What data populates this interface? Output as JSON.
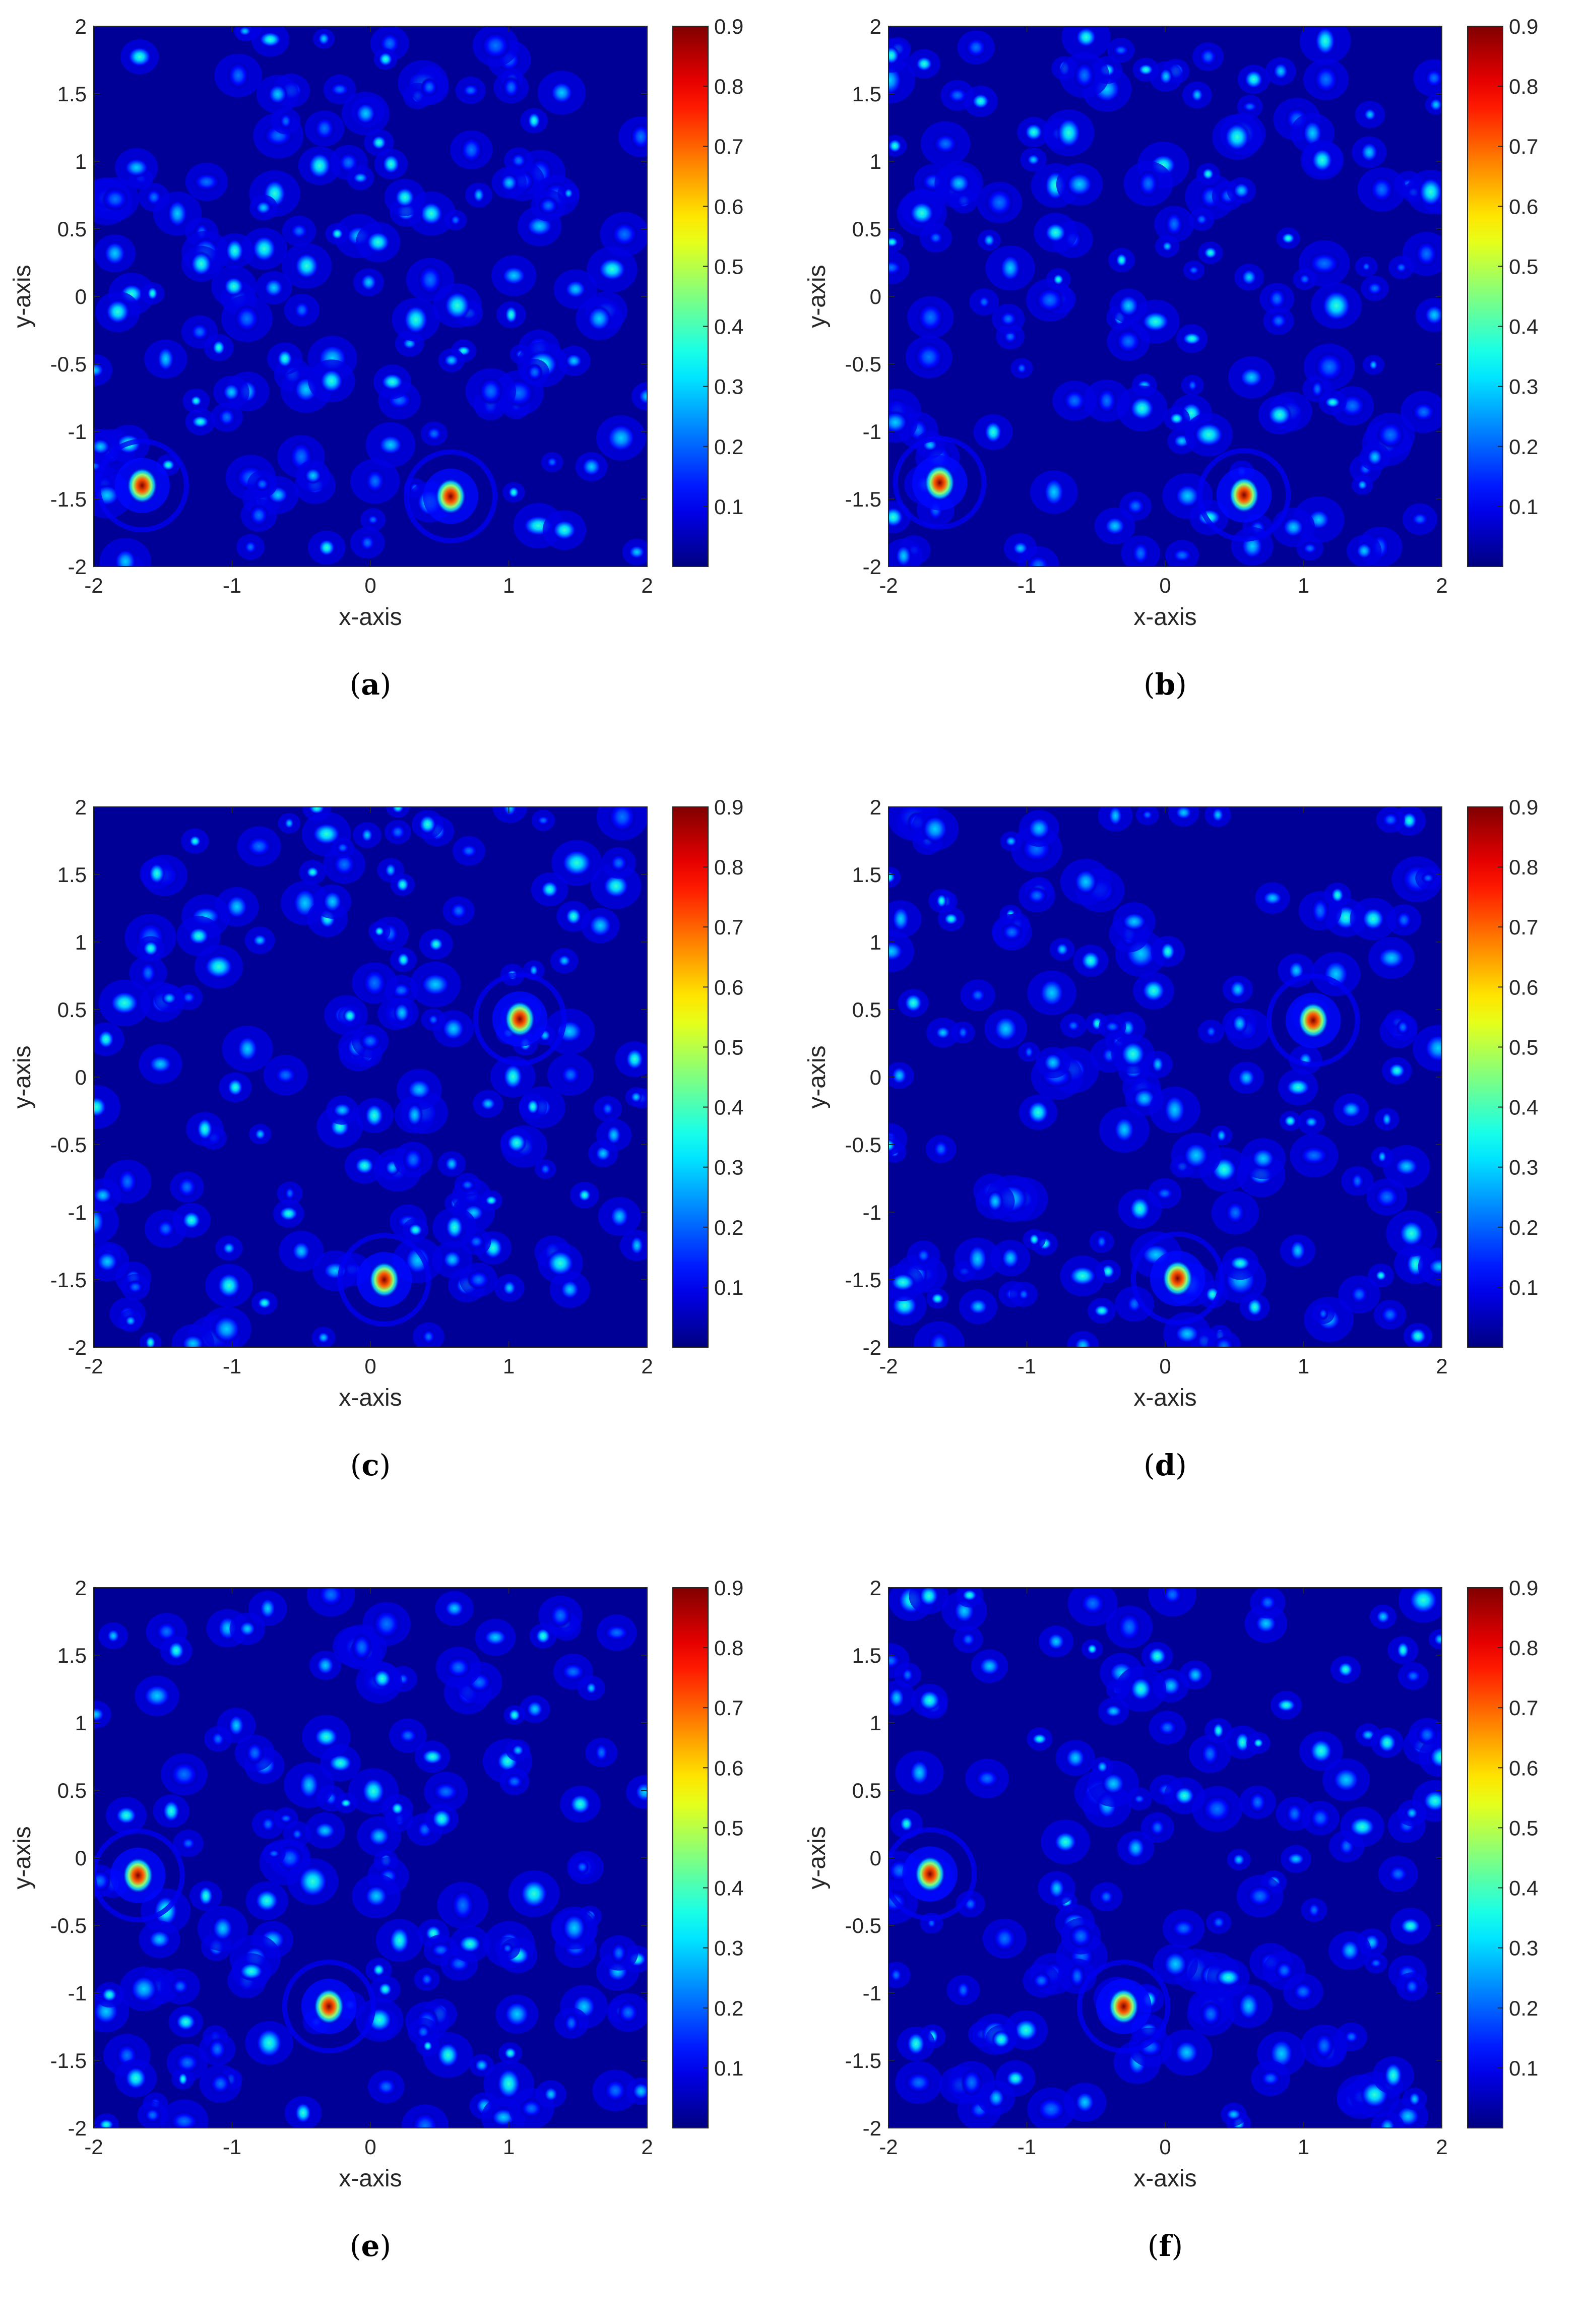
{
  "chart_data": [
    {
      "type": "heatmap",
      "caption": "(a)",
      "caption_letter": "a",
      "xlabel": "x-axis",
      "ylabel": "y-axis",
      "xlim": [
        -2,
        2
      ],
      "ylim": [
        -2,
        2
      ],
      "xticks": [
        "-2",
        "-1",
        "0",
        "1",
        "2"
      ],
      "yticks": [
        "2",
        "1.5",
        "1",
        "0.5",
        "0",
        "-0.5",
        "-1",
        "-1.5",
        "-2"
      ],
      "colorbar": {
        "range": [
          0,
          0.9
        ],
        "ticks": [
          "0.9",
          "0.8",
          "0.7",
          "0.6",
          "0.5",
          "0.4",
          "0.3",
          "0.2",
          "0.1"
        ],
        "colormap": "jet"
      },
      "peaks": [
        {
          "x": -1.65,
          "y": -1.4,
          "value": 0.9
        },
        {
          "x": 0.58,
          "y": -1.48,
          "value": 0.9
        }
      ],
      "speckle_seed": 11
    },
    {
      "type": "heatmap",
      "caption": "(b)",
      "caption_letter": "b",
      "xlabel": "x-axis",
      "ylabel": "y-axis",
      "xlim": [
        -2,
        2
      ],
      "ylim": [
        -2,
        2
      ],
      "xticks": [
        "-2",
        "-1",
        "0",
        "1",
        "2"
      ],
      "yticks": [
        "2",
        "1.5",
        "1",
        "0.5",
        "0",
        "-0.5",
        "-1",
        "-1.5",
        "-2"
      ],
      "colorbar": {
        "range": [
          0,
          0.9
        ],
        "ticks": [
          "0.9",
          "0.8",
          "0.7",
          "0.6",
          "0.5",
          "0.4",
          "0.3",
          "0.2",
          "0.1"
        ],
        "colormap": "jet"
      },
      "peaks": [
        {
          "x": -1.63,
          "y": -1.38,
          "value": 0.9
        },
        {
          "x": 0.57,
          "y": -1.47,
          "value": 0.88
        }
      ],
      "speckle_seed": 12
    },
    {
      "type": "heatmap",
      "caption": "(c)",
      "caption_letter": "c",
      "xlabel": "x-axis",
      "ylabel": "y-axis",
      "xlim": [
        -2,
        2
      ],
      "ylim": [
        -2,
        2
      ],
      "xticks": [
        "-2",
        "-1",
        "0",
        "1",
        "2"
      ],
      "yticks": [
        "2",
        "1.5",
        "1",
        "0.5",
        "0",
        "-0.5",
        "-1",
        "-1.5",
        "-2"
      ],
      "colorbar": {
        "range": [
          0,
          0.9
        ],
        "ticks": [
          "0.9",
          "0.8",
          "0.7",
          "0.6",
          "0.5",
          "0.4",
          "0.3",
          "0.2",
          "0.1"
        ],
        "colormap": "jet"
      },
      "peaks": [
        {
          "x": 1.08,
          "y": 0.43,
          "value": 0.9
        },
        {
          "x": 0.1,
          "y": -1.5,
          "value": 0.9
        }
      ],
      "speckle_seed": 21
    },
    {
      "type": "heatmap",
      "caption": "(d)",
      "caption_letter": "d",
      "xlabel": "x-axis",
      "ylabel": "y-axis",
      "xlim": [
        -2,
        2
      ],
      "ylim": [
        -2,
        2
      ],
      "xticks": [
        "-2",
        "-1",
        "0",
        "1",
        "2"
      ],
      "yticks": [
        "2",
        "1.5",
        "1",
        "0.5",
        "0",
        "-0.5",
        "-1",
        "-1.5",
        "-2"
      ],
      "colorbar": {
        "range": [
          0,
          0.9
        ],
        "ticks": [
          "0.9",
          "0.8",
          "0.7",
          "0.6",
          "0.5",
          "0.4",
          "0.3",
          "0.2",
          "0.1"
        ],
        "colormap": "jet"
      },
      "peaks": [
        {
          "x": 1.07,
          "y": 0.42,
          "value": 0.88
        },
        {
          "x": 0.09,
          "y": -1.49,
          "value": 0.9
        }
      ],
      "speckle_seed": 22
    },
    {
      "type": "heatmap",
      "caption": "(e)",
      "caption_letter": "e",
      "xlabel": "x-axis",
      "ylabel": "y-axis",
      "xlim": [
        -2,
        2
      ],
      "ylim": [
        -2,
        2
      ],
      "xticks": [
        "-2",
        "-1",
        "0",
        "1",
        "2"
      ],
      "yticks": [
        "2",
        "1.5",
        "1",
        "0.5",
        "0",
        "-0.5",
        "-1",
        "-1.5",
        "-2"
      ],
      "colorbar": {
        "range": [
          0,
          0.9
        ],
        "ticks": [
          "0.9",
          "0.8",
          "0.7",
          "0.6",
          "0.5",
          "0.4",
          "0.3",
          "0.2",
          "0.1"
        ],
        "colormap": "jet"
      },
      "peaks": [
        {
          "x": -1.68,
          "y": -0.13,
          "value": 0.9
        },
        {
          "x": -0.3,
          "y": -1.1,
          "value": 0.9
        }
      ],
      "speckle_seed": 31
    },
    {
      "type": "heatmap",
      "caption": "(f)",
      "caption_letter": "f",
      "xlabel": "x-axis",
      "ylabel": "y-axis",
      "xlim": [
        -2,
        2
      ],
      "ylim": [
        -2,
        2
      ],
      "xticks": [
        "-2",
        "-1",
        "0",
        "1",
        "2"
      ],
      "yticks": [
        "2",
        "1.5",
        "1",
        "0.5",
        "0",
        "-0.5",
        "-1",
        "-1.5",
        "-2"
      ],
      "colorbar": {
        "range": [
          0,
          0.9
        ],
        "ticks": [
          "0.9",
          "0.8",
          "0.7",
          "0.6",
          "0.5",
          "0.4",
          "0.3",
          "0.2",
          "0.1"
        ],
        "colormap": "jet"
      },
      "peaks": [
        {
          "x": -1.7,
          "y": -0.12,
          "value": 0.9
        },
        {
          "x": -0.3,
          "y": -1.1,
          "value": 0.88
        }
      ],
      "speckle_seed": 32
    }
  ]
}
